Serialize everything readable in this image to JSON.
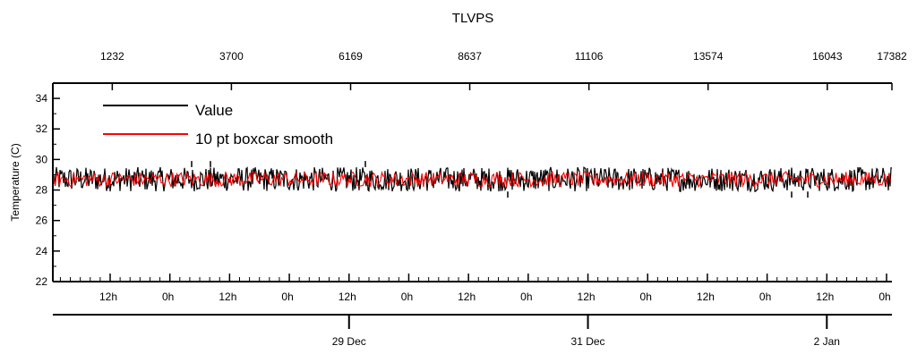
{
  "chart_data": {
    "type": "line",
    "title": "TLVPS",
    "ylabel": "Temperature (C)",
    "ylim": [
      22,
      35
    ],
    "y_ticks": [
      22,
      24,
      26,
      28,
      30,
      32,
      34
    ],
    "top_axis": {
      "range": [
        1,
        17382
      ],
      "ticks": [
        1232,
        3700,
        6169,
        8637,
        11106,
        13574,
        16043,
        17382
      ]
    },
    "bottom_axis": {
      "hour_labels": [
        "12h",
        "0h",
        "12h",
        "0h",
        "12h",
        "0h",
        "12h",
        "0h",
        "12h",
        "0h",
        "12h",
        "0h",
        "12h",
        "0h"
      ],
      "date_labels": [
        "29 Dec",
        "31 Dec",
        "2 Jan"
      ]
    },
    "legend_placement": "top-left",
    "series": [
      {
        "name": "Value",
        "color": "#000000",
        "band": [
          27.9,
          29.5
        ],
        "typical_mean": 28.7,
        "spikes_up": [
          29.9,
          29.9,
          29.9
        ],
        "spikes_down": [
          27.5,
          27.5,
          27.5
        ]
      },
      {
        "name": "10 pt boxcar smooth",
        "color": "#ff0000",
        "band": [
          28.2,
          29.2
        ],
        "typical_mean": 28.7
      }
    ]
  }
}
